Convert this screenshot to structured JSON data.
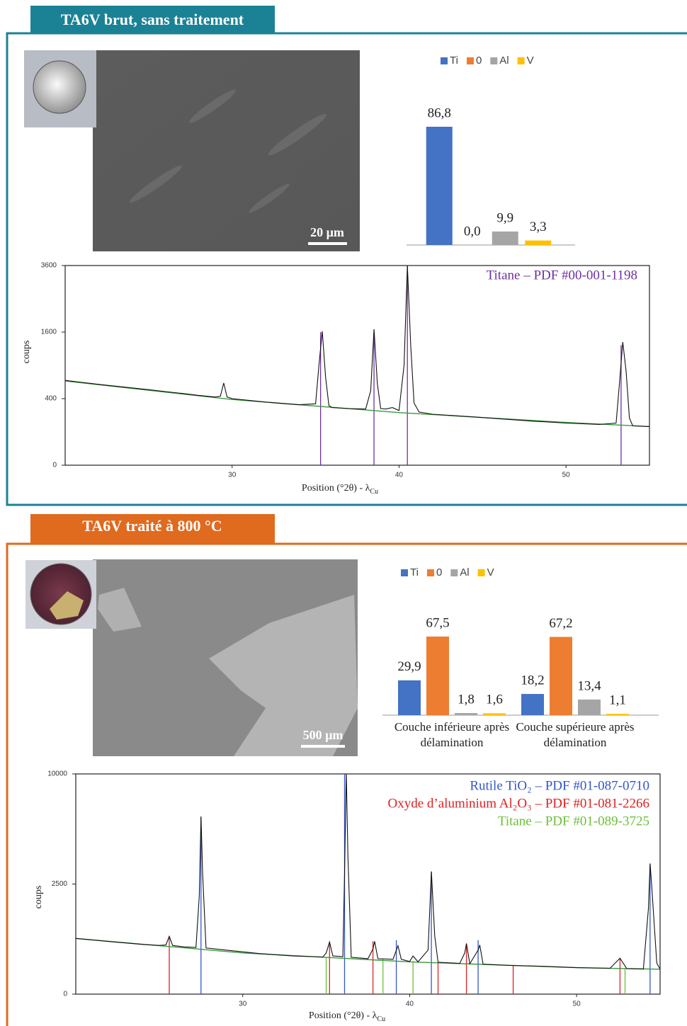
{
  "panels": [
    {
      "title": "TA6V brut, sans traitement",
      "scale_bar": "20 µm"
    },
    {
      "title": "TA6V traité à 800 °C",
      "scale_bar": "500 µm"
    }
  ],
  "chart_data": [
    {
      "type": "bar",
      "categories": [
        null
      ],
      "series": [
        {
          "name": "Ti",
          "color": "#4472c4",
          "values": [
            86.8
          ],
          "value_labels": [
            "86,8"
          ]
        },
        {
          "name": "0",
          "color": "#ed7d31",
          "values": [
            0.0
          ],
          "value_labels": [
            "0,0"
          ]
        },
        {
          "name": "Al",
          "color": "#a5a5a5",
          "values": [
            9.9
          ],
          "value_labels": [
            "9,9"
          ]
        },
        {
          "name": "V",
          "color": "#ffc000",
          "values": [
            3.3
          ],
          "value_labels": [
            "3,3"
          ]
        }
      ],
      "legend": "top"
    },
    {
      "type": "line",
      "x_label": {
        "text": "Position (°2θ) - λ",
        "sub": "Cu"
      },
      "y_label": "coups",
      "xlim": [
        20,
        55
      ],
      "xticks": [
        30,
        40,
        50
      ],
      "ylim": [
        0,
        3600
      ],
      "yticks": [
        0,
        400,
        1600,
        3600
      ],
      "yscale": "sqrt",
      "series": [
        {
          "color": "#111111",
          "x": [
            20,
            21,
            22,
            23,
            24,
            25,
            26,
            27,
            28,
            29,
            29.3,
            29.5,
            29.7,
            30,
            31,
            32,
            33,
            34,
            35,
            35.2,
            35.4,
            35.6,
            35.8,
            36,
            37,
            38,
            38.3,
            38.5,
            38.7,
            38.9,
            39.2,
            39.6,
            40,
            40.3,
            40.5,
            40.7,
            40.9,
            41.2,
            42,
            43,
            44,
            45,
            46,
            47,
            48,
            49,
            50,
            51,
            52,
            53,
            53.2,
            53.4,
            53.6,
            53.8,
            54,
            55
          ],
          "values": [
            650,
            620,
            590,
            565,
            540,
            515,
            490,
            465,
            440,
            420,
            430,
            610,
            420,
            400,
            380,
            360,
            345,
            330,
            340,
            900,
            1620,
            700,
            320,
            300,
            290,
            285,
            500,
            1670,
            600,
            290,
            285,
            300,
            270,
            900,
            3600,
            1300,
            350,
            255,
            235,
            225,
            215,
            205,
            195,
            185,
            175,
            168,
            160,
            155,
            150,
            160,
            600,
            1370,
            800,
            200,
            140,
            135
          ]
        },
        {
          "color": "#3a9a3a",
          "x": [
            20,
            30,
            40,
            50,
            55
          ],
          "values": [
            640,
            390,
            250,
            165,
            135
          ]
        }
      ],
      "references": [
        {
          "name": "Titane – PDF #00-001-1198",
          "color": "#7030a0",
          "x": [
            35.3,
            38.5,
            40.5,
            53.3
          ],
          "values": [
            1600,
            1600,
            3600,
            1300
          ]
        }
      ]
    },
    {
      "type": "bar",
      "categories": [
        "Couche inférieure après délamination",
        "Couche supérieure après délamination"
      ],
      "series": [
        {
          "name": "Ti",
          "color": "#4472c4",
          "values": [
            29.9,
            18.2
          ],
          "value_labels": [
            "29,9",
            "18,2"
          ]
        },
        {
          "name": "0",
          "color": "#ed7d31",
          "values": [
            67.5,
            67.2
          ],
          "value_labels": [
            "67,5",
            "67,2"
          ]
        },
        {
          "name": "Al",
          "color": "#a5a5a5",
          "values": [
            1.8,
            13.4
          ],
          "value_labels": [
            "1,8",
            "13,4"
          ]
        },
        {
          "name": "V",
          "color": "#ffc000",
          "values": [
            1.6,
            1.1
          ],
          "value_labels": [
            "1,6",
            "1,1"
          ]
        }
      ],
      "legend": "top"
    },
    {
      "type": "line",
      "x_label": {
        "text": "Position (°2θ) - λ",
        "sub": "Cu"
      },
      "y_label": "coups",
      "xlim": [
        20,
        55
      ],
      "xticks": [
        30,
        40,
        50
      ],
      "ylim": [
        0,
        10000
      ],
      "yticks": [
        0,
        2500,
        10000
      ],
      "yscale": "sqrt",
      "series": [
        {
          "color": "#111111",
          "x": [
            20,
            22,
            24,
            25,
            25.4,
            25.6,
            25.8,
            26.5,
            27.2,
            27.4,
            27.5,
            27.6,
            27.8,
            29,
            31,
            33,
            34.8,
            35,
            35.2,
            35.4,
            36,
            36.1,
            36.2,
            36.3,
            36.5,
            37.5,
            37.8,
            37.9,
            38.1,
            39,
            39.3,
            39.5,
            40,
            40.2,
            40.5,
            41.1,
            41.3,
            41.5,
            41.7,
            43,
            43.3,
            43.4,
            43.6,
            44.1,
            44.2,
            44.4,
            46,
            48,
            50,
            52,
            52.6,
            53,
            54,
            54.3,
            54.4,
            54.5,
            54.8,
            55
          ],
          "values": [
            640,
            570,
            510,
            490,
            500,
            690,
            490,
            460,
            450,
            2000,
            6500,
            3000,
            440,
            400,
            340,
            300,
            285,
            350,
            560,
            300,
            290,
            3000,
            10200,
            4000,
            280,
            260,
            420,
            576,
            260,
            250,
            484,
            250,
            220,
            300,
            215,
            400,
            3100,
            700,
            210,
            195,
            350,
            529,
            190,
            400,
            498,
            185,
            170,
            160,
            145,
            138,
            267,
            135,
            130,
            1500,
            3520,
            2400,
            200,
            128
          ]
        },
        {
          "color": "#3a9a3a",
          "x": [
            20,
            30,
            40,
            50,
            55
          ],
          "values": [
            640,
            350,
            215,
            145,
            128
          ]
        }
      ],
      "references": [
        {
          "name": "Rutile TiO₂ – PDF #01-087-0710",
          "color": "#3456c8",
          "x": [
            27.5,
            36.1,
            39.2,
            41.3,
            44.1,
            54.4
          ],
          "values": [
            6500,
            10000,
            600,
            3100,
            600,
            3520
          ]
        },
        {
          "name": "Oxyde d’aluminium Al₂O₃ – PDF #01-081-2266",
          "color": "#e02020",
          "x": [
            25.6,
            35.2,
            37.8,
            41.7,
            43.4,
            46.2,
            52.6
          ],
          "values": [
            690,
            560,
            576,
            210,
            529,
            170,
            267
          ]
        },
        {
          "name": "Titane – PDF #01-089-3725",
          "color": "#6cbf3a",
          "x": [
            35.0,
            38.4,
            40.2,
            52.9
          ],
          "values": [
            280,
            255,
            220,
            140
          ]
        }
      ]
    }
  ]
}
